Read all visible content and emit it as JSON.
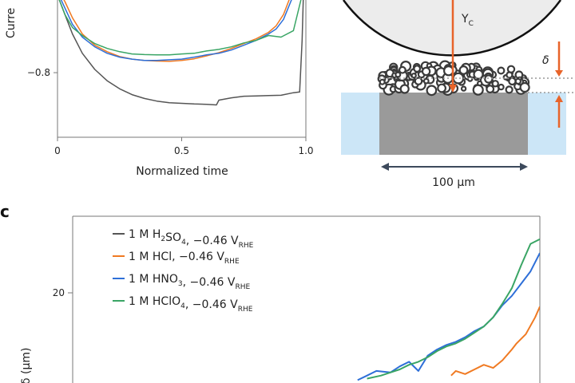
{
  "panel_labels": {
    "c": "c"
  },
  "chart_data": [
    {
      "type": "line",
      "panel": "top-left",
      "title": "",
      "xlabel": "Normalized time",
      "ylabel": "Curre",
      "xlim": [
        0,
        1.0
      ],
      "ylim": [
        -1.0,
        -0.575
      ],
      "xticks": [
        0,
        0.5,
        1.0
      ],
      "xtick_labels": [
        "0",
        "0.5",
        "1.0"
      ],
      "yticks": [
        -0.8
      ],
      "ytick_labels": [
        "−0.8"
      ],
      "grid": false,
      "series": [
        {
          "name": "1 M H2SO4",
          "color": "#555555",
          "x": [
            0.0,
            0.03,
            0.06,
            0.1,
            0.15,
            0.2,
            0.25,
            0.3,
            0.35,
            0.4,
            0.45,
            0.5,
            0.55,
            0.6,
            0.64,
            0.65,
            0.7,
            0.75,
            0.8,
            0.85,
            0.9,
            0.95,
            0.975,
            0.985,
            0.99
          ],
          "y": [
            -0.56,
            -0.62,
            -0.68,
            -0.74,
            -0.79,
            -0.825,
            -0.85,
            -0.868,
            -0.88,
            -0.888,
            -0.893,
            -0.895,
            -0.897,
            -0.898,
            -0.9,
            -0.885,
            -0.878,
            -0.873,
            -0.872,
            -0.871,
            -0.87,
            -0.862,
            -0.86,
            -0.7,
            -0.56
          ]
        },
        {
          "name": "1 M HCl",
          "color": "#f07a22",
          "x": [
            0.0,
            0.03,
            0.06,
            0.1,
            0.15,
            0.2,
            0.25,
            0.3,
            0.35,
            0.4,
            0.45,
            0.5,
            0.55,
            0.6,
            0.65,
            0.7,
            0.75,
            0.8,
            0.85,
            0.88,
            0.91,
            0.94
          ],
          "y": [
            -0.54,
            -0.58,
            -0.63,
            -0.68,
            -0.715,
            -0.735,
            -0.75,
            -0.758,
            -0.762,
            -0.764,
            -0.765,
            -0.762,
            -0.757,
            -0.748,
            -0.738,
            -0.725,
            -0.71,
            -0.695,
            -0.675,
            -0.655,
            -0.62,
            -0.56
          ]
        },
        {
          "name": "1 M HNO3",
          "color": "#2e6fd8",
          "x": [
            0.0,
            0.03,
            0.06,
            0.1,
            0.15,
            0.2,
            0.25,
            0.3,
            0.35,
            0.4,
            0.45,
            0.5,
            0.55,
            0.6,
            0.65,
            0.7,
            0.75,
            0.8,
            0.85,
            0.88,
            0.91,
            0.95
          ],
          "y": [
            -0.55,
            -0.6,
            -0.65,
            -0.69,
            -0.72,
            -0.74,
            -0.752,
            -0.758,
            -0.762,
            -0.762,
            -0.76,
            -0.758,
            -0.752,
            -0.745,
            -0.74,
            -0.73,
            -0.715,
            -0.7,
            -0.68,
            -0.665,
            -0.635,
            -0.56
          ]
        },
        {
          "name": "1 M HClO4",
          "color": "#3aa565",
          "x": [
            0.0,
            0.03,
            0.06,
            0.1,
            0.15,
            0.2,
            0.25,
            0.3,
            0.35,
            0.4,
            0.45,
            0.5,
            0.55,
            0.6,
            0.65,
            0.7,
            0.75,
            0.8,
            0.85,
            0.9,
            0.95,
            0.98
          ],
          "y": [
            -0.56,
            -0.62,
            -0.66,
            -0.685,
            -0.71,
            -0.725,
            -0.735,
            -0.742,
            -0.744,
            -0.745,
            -0.745,
            -0.742,
            -0.74,
            -0.733,
            -0.728,
            -0.72,
            -0.708,
            -0.7,
            -0.685,
            -0.69,
            -0.67,
            -0.575
          ]
        }
      ]
    },
    {
      "type": "line",
      "panel": "c",
      "title": "",
      "xlabel": "",
      "ylabel": "δ (µm)",
      "xlim": [
        0,
        1.0
      ],
      "ylim": [
        13,
        25
      ],
      "yticks": [
        20
      ],
      "ytick_labels": [
        "20"
      ],
      "grid": false,
      "legend_position": "top-left",
      "series": [
        {
          "name": "1 M H2SO4",
          "legend": {
            "pre": "1 M H",
            "sub1": "2",
            "mid": "SO",
            "sub2": "4",
            "post": ", −0.46 V",
            "sub3": "RHE"
          },
          "color": "#555555",
          "x": [],
          "y": []
        },
        {
          "name": "1 M HCl",
          "legend": {
            "pre": "1 M HCl, −0.46 V",
            "sub1": "",
            "mid": "",
            "sub2": "",
            "post": "",
            "sub3": "RHE"
          },
          "color": "#f07a22",
          "x": [
            0.81,
            0.82,
            0.84,
            0.86,
            0.88,
            0.9,
            0.92,
            0.94,
            0.95,
            0.97,
            0.99,
            1.0
          ],
          "y": [
            14.6,
            14.9,
            14.7,
            15.0,
            15.3,
            15.1,
            15.6,
            16.3,
            16.7,
            17.3,
            18.4,
            19.1
          ]
        },
        {
          "name": "1 M HNO3",
          "legend": {
            "pre": "1 M HNO",
            "sub1": "3",
            "mid": "",
            "sub2": "",
            "post": ", −0.46 V",
            "sub3": "RHE"
          },
          "color": "#2e6fd8",
          "x": [
            0.61,
            0.63,
            0.65,
            0.68,
            0.7,
            0.72,
            0.74,
            0.76,
            0.78,
            0.8,
            0.82,
            0.84,
            0.86,
            0.88,
            0.9,
            0.92,
            0.94,
            0.96,
            0.98,
            1.0
          ],
          "y": [
            14.3,
            14.6,
            14.9,
            14.8,
            15.2,
            15.5,
            14.9,
            15.9,
            16.3,
            16.6,
            16.8,
            17.1,
            17.5,
            17.8,
            18.4,
            19.2,
            19.8,
            20.6,
            21.4,
            22.6
          ]
        },
        {
          "name": "1 M HClO4",
          "legend": {
            "pre": "1 M HClO",
            "sub1": "4",
            "mid": "",
            "sub2": "",
            "post": ", −0.46 V",
            "sub3": "RHE"
          },
          "color": "#3aa565",
          "x": [
            0.63,
            0.66,
            0.68,
            0.7,
            0.72,
            0.74,
            0.76,
            0.78,
            0.8,
            0.82,
            0.84,
            0.86,
            0.88,
            0.9,
            0.92,
            0.94,
            0.96,
            0.98,
            1.0
          ],
          "y": [
            14.4,
            14.6,
            14.8,
            15.0,
            15.3,
            15.5,
            15.8,
            16.2,
            16.5,
            16.7,
            17.0,
            17.4,
            17.8,
            18.4,
            19.3,
            20.3,
            21.8,
            23.2,
            23.5
          ]
        }
      ]
    }
  ],
  "diagram": {
    "label_yc": "Y",
    "label_yc_sub": "C",
    "label_delta": "δ",
    "scale_label": "100 µm",
    "colors": {
      "sphere": "#ececec",
      "electrode": "#999999",
      "electrolyte": "#cce6f7",
      "arrow": "#e8642a",
      "scale": "#3d4a5c"
    }
  }
}
